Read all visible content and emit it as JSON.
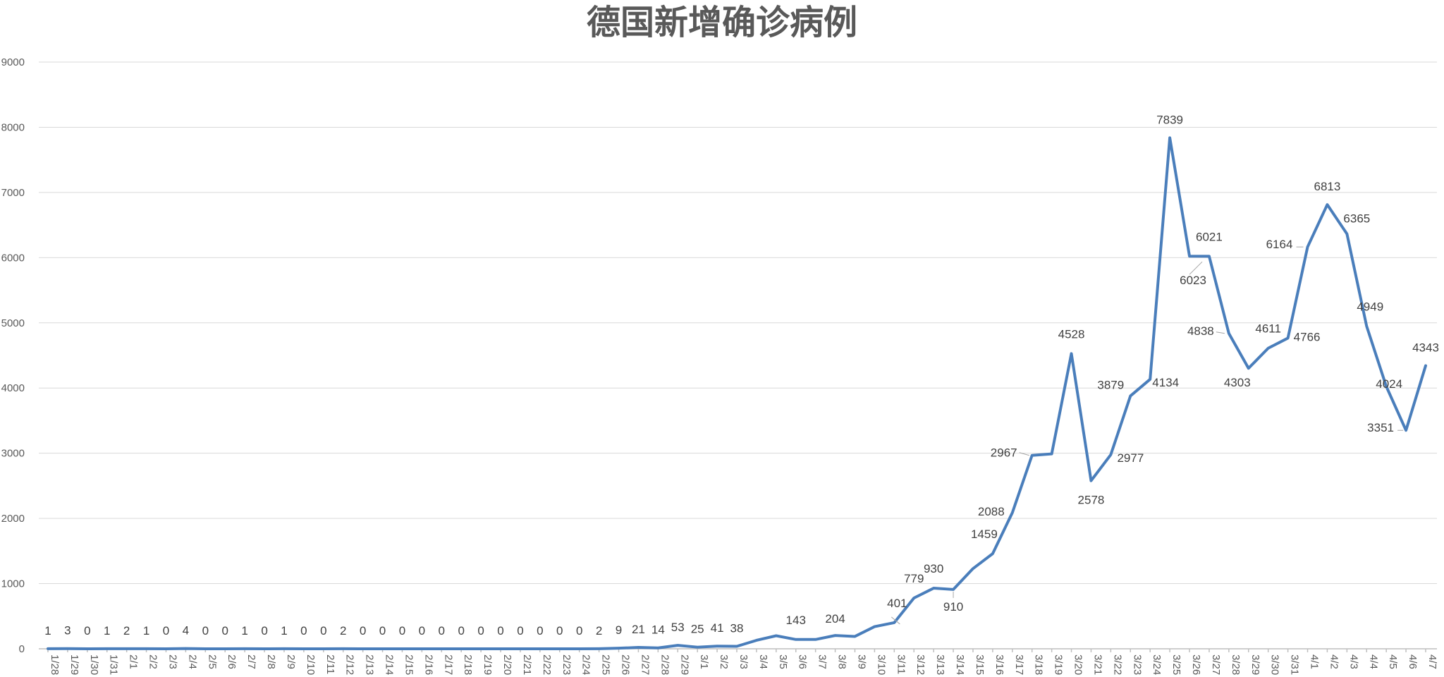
{
  "chart_data": {
    "type": "line",
    "title": "德国新增确诊病例",
    "xlabel": "",
    "ylabel": "",
    "ylim": [
      0,
      9000
    ],
    "yticks": [
      0,
      1000,
      2000,
      3000,
      4000,
      5000,
      6000,
      7000,
      8000,
      9000
    ],
    "grid": true,
    "legend": "none",
    "color": "#4a7ebb",
    "categories": [
      "1/28",
      "1/29",
      "1/30",
      "1/31",
      "2/1",
      "2/2",
      "2/3",
      "2/4",
      "2/5",
      "2/6",
      "2/7",
      "2/8",
      "2/9",
      "2/10",
      "2/11",
      "2/12",
      "2/13",
      "2/14",
      "2/15",
      "2/16",
      "2/17",
      "2/18",
      "2/19",
      "2/20",
      "2/21",
      "2/22",
      "2/23",
      "2/24",
      "2/25",
      "2/26",
      "2/27",
      "2/28",
      "2/29",
      "3/1",
      "3/2",
      "3/3",
      "3/4",
      "3/5",
      "3/6",
      "3/7",
      "3/8",
      "3/9",
      "3/10",
      "3/11",
      "3/12",
      "3/13",
      "3/14",
      "3/15",
      "3/16",
      "3/17",
      "3/18",
      "3/19",
      "3/20",
      "3/21",
      "3/22",
      "3/23",
      "3/24",
      "3/25",
      "3/26",
      "3/27",
      "3/28",
      "3/29",
      "3/30",
      "3/31",
      "4/1",
      "4/2",
      "4/3",
      "4/4",
      "4/5",
      "4/6",
      "4/7"
    ],
    "values": [
      1,
      3,
      0,
      1,
      2,
      1,
      0,
      4,
      0,
      0,
      1,
      0,
      1,
      0,
      0,
      2,
      0,
      0,
      0,
      0,
      0,
      0,
      0,
      0,
      0,
      0,
      0,
      0,
      2,
      9,
      21,
      14,
      53,
      25,
      41,
      38,
      130,
      200,
      143,
      143,
      204,
      190,
      340,
      401,
      779,
      930,
      910,
      1230,
      1459,
      2088,
      2967,
      2990,
      4528,
      2578,
      2977,
      3879,
      4134,
      7839,
      6023,
      6021,
      4838,
      4303,
      4611,
      4766,
      6164,
      6813,
      6365,
      4949,
      4024,
      3351,
      4343
    ],
    "data_labels": [
      {
        "i": 0,
        "text": "1"
      },
      {
        "i": 1,
        "text": "3"
      },
      {
        "i": 2,
        "text": "0"
      },
      {
        "i": 3,
        "text": "1"
      },
      {
        "i": 4,
        "text": "2"
      },
      {
        "i": 5,
        "text": "1"
      },
      {
        "i": 6,
        "text": "0"
      },
      {
        "i": 7,
        "text": "4"
      },
      {
        "i": 8,
        "text": "0"
      },
      {
        "i": 9,
        "text": "0"
      },
      {
        "i": 10,
        "text": "1"
      },
      {
        "i": 11,
        "text": "0"
      },
      {
        "i": 12,
        "text": "1"
      },
      {
        "i": 13,
        "text": "0"
      },
      {
        "i": 14,
        "text": "0"
      },
      {
        "i": 15,
        "text": "2"
      },
      {
        "i": 16,
        "text": "0"
      },
      {
        "i": 17,
        "text": "0"
      },
      {
        "i": 18,
        "text": "0"
      },
      {
        "i": 19,
        "text": "0"
      },
      {
        "i": 20,
        "text": "0"
      },
      {
        "i": 21,
        "text": "0"
      },
      {
        "i": 22,
        "text": "0"
      },
      {
        "i": 23,
        "text": "0"
      },
      {
        "i": 24,
        "text": "0"
      },
      {
        "i": 25,
        "text": "0"
      },
      {
        "i": 26,
        "text": "0"
      },
      {
        "i": 27,
        "text": "0"
      },
      {
        "i": 28,
        "text": "2"
      },
      {
        "i": 29,
        "text": "9"
      },
      {
        "i": 30,
        "text": "21"
      },
      {
        "i": 31,
        "text": "14"
      },
      {
        "i": 32,
        "text": "53"
      },
      {
        "i": 33,
        "text": "25"
      },
      {
        "i": 34,
        "text": "41"
      },
      {
        "i": 35,
        "text": "38"
      },
      {
        "i": 38,
        "text": "143"
      },
      {
        "i": 40,
        "text": "204"
      },
      {
        "i": 43,
        "text": "401"
      },
      {
        "i": 44,
        "text": "779"
      },
      {
        "i": 45,
        "text": "930"
      },
      {
        "i": 46,
        "text": "910"
      },
      {
        "i": 48,
        "text": "1459"
      },
      {
        "i": 49,
        "text": "2088"
      },
      {
        "i": 50,
        "text": "2967"
      },
      {
        "i": 52,
        "text": "4528"
      },
      {
        "i": 53,
        "text": "2578"
      },
      {
        "i": 54,
        "text": "2977"
      },
      {
        "i": 55,
        "text": "3879"
      },
      {
        "i": 56,
        "text": "4134"
      },
      {
        "i": 57,
        "text": "7839"
      },
      {
        "i": 58,
        "text": "6023"
      },
      {
        "i": 59,
        "text": "6021"
      },
      {
        "i": 60,
        "text": "4838"
      },
      {
        "i": 61,
        "text": "4303"
      },
      {
        "i": 62,
        "text": "4611"
      },
      {
        "i": 63,
        "text": "4766"
      },
      {
        "i": 64,
        "text": "6164"
      },
      {
        "i": 65,
        "text": "6813"
      },
      {
        "i": 66,
        "text": "6365"
      },
      {
        "i": 67,
        "text": "4949"
      },
      {
        "i": 68,
        "text": "4024"
      },
      {
        "i": 69,
        "text": "3351"
      },
      {
        "i": 70,
        "text": "4343"
      }
    ]
  }
}
